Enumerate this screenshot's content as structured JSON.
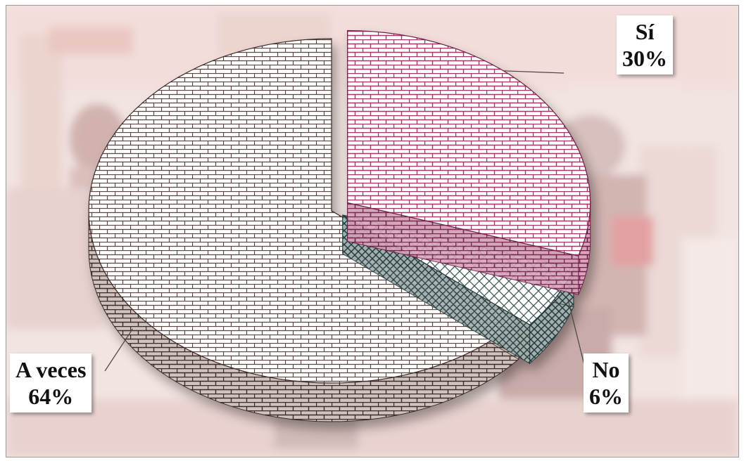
{
  "chart_data": {
    "type": "pie",
    "title": "",
    "slices": [
      {
        "label": "Sí",
        "value": 30,
        "value_text": "30%",
        "color": "#a3366a",
        "pattern": "brick"
      },
      {
        "label": "No",
        "value": 6,
        "value_text": "6%",
        "color": "#3f5a58",
        "pattern": "diamond-lattice"
      },
      {
        "label": "A veces",
        "value": 64,
        "value_text": "64%",
        "color": "#5b4640",
        "pattern": "brick"
      }
    ],
    "style": "3d-exploded"
  }
}
